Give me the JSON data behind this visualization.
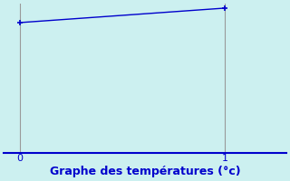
{
  "x": [
    0,
    1
  ],
  "y": [
    1.0,
    2.0
  ],
  "line_color": "#0000cc",
  "marker": "+",
  "marker_size": 5,
  "marker_color": "#0000cc",
  "background_color": "#ccf0f0",
  "axis_color": "#999999",
  "spine_bottom_color": "#0000cc",
  "xlabel": "Graphe des températures (°c)",
  "xlabel_color": "#0000cc",
  "xlabel_fontsize": 9,
  "tick_label_color": "#0000cc",
  "ylim": [
    -8.0,
    2.3
  ],
  "xlim": [
    -0.08,
    1.3
  ],
  "xticks": [
    0,
    1
  ],
  "line_width": 1.0
}
